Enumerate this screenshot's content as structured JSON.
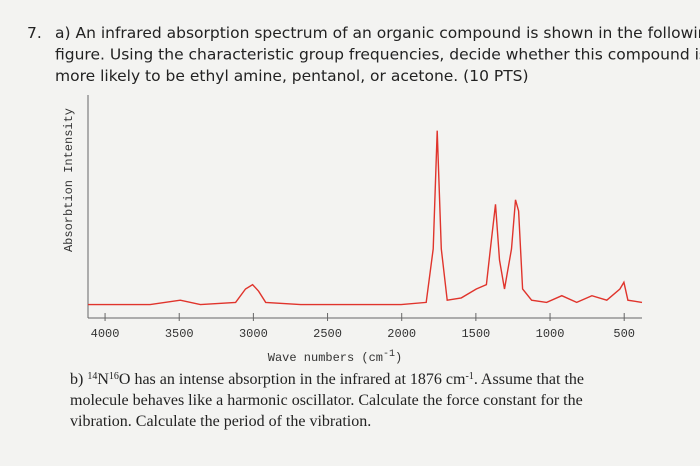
{
  "question": {
    "number": "7.",
    "lines": [
      "a) An infrared absorption spectrum of an organic compound is shown in the following",
      "figure. Using the characteristic group frequencies, decide whether this compound is",
      "more likely to be ethyl amine, pentanol, or acetone. (10 PTS)"
    ]
  },
  "chart_data": {
    "type": "line",
    "x_label": {
      "text": "Wave numbers (cm",
      "sup": "-1",
      "close": ")"
    },
    "y_label": "Absorbtion Intensity",
    "x": [
      4115,
      3696,
      3493,
      3357,
      3120,
      3053,
      3005,
      2965,
      2917,
      2681,
      2004,
      1835,
      1788,
      1761,
      1733,
      1693,
      1598,
      1497,
      1429,
      1395,
      1368,
      1341,
      1307,
      1260,
      1233,
      1212,
      1185,
      1124,
      1023,
      921,
      820,
      718,
      617,
      529,
      502,
      475,
      380
    ],
    "series": [
      {
        "color": "#e0342c",
        "values": [
          6,
          6,
          8,
          6,
          7,
          13,
          15,
          12,
          7,
          6,
          6,
          7,
          31,
          84,
          31,
          8,
          9,
          13,
          15,
          35,
          51,
          26,
          13,
          31,
          53,
          48,
          13,
          8,
          7,
          10,
          7,
          10,
          8,
          13,
          16,
          8,
          7
        ]
      }
    ],
    "xlim": [
      4115,
      380
    ],
    "ylim": [
      0,
      100
    ],
    "xticks": [
      4000,
      3500,
      3000,
      2500,
      2000,
      1500,
      1000,
      500
    ]
  },
  "part_b": {
    "lines": [
      [
        "b) ",
        {
          "sup": "14"
        },
        "N",
        {
          "sup": "16"
        },
        "O has an intense absorption in the infrared at 1876 cm",
        {
          "sup": "-1"
        },
        ". Assume that the"
      ],
      [
        "molecule behaves like a harmonic oscillator. Calculate the force constant for the"
      ],
      [
        "vibration. Calculate the period of the vibration."
      ]
    ]
  }
}
